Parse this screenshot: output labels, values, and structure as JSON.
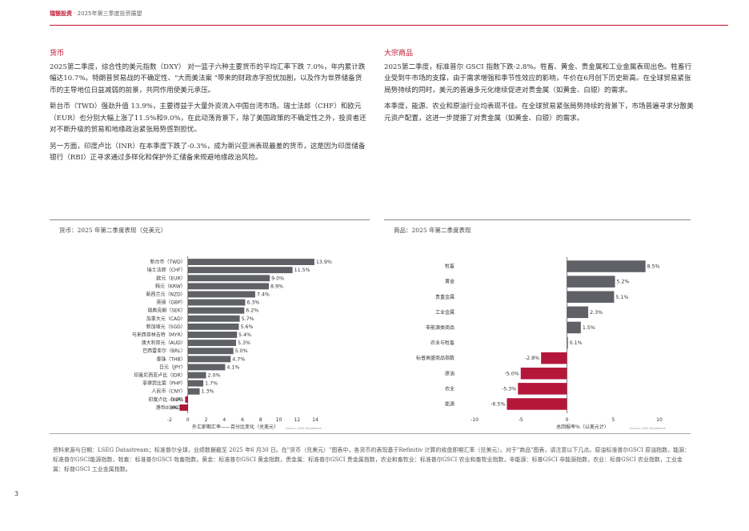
{
  "header": {
    "brand": "瑞银投资",
    "title": "· 2025年第三季度投资展望"
  },
  "currency_section": {
    "title": "货币",
    "paragraphs": [
      "2025第二季度，综合性的美元指数（DXY） 对一篮子六种主要货币的平均汇率下跌 7.0%，年内累计跌幅达10.7%。特朗普贸易战的不确定性、\"大而美法案 \"带来的财政赤字担忧加剧，以及作为世界储备货币的主导地位日益减弱的前景，共同作用使美元承压。",
      "新台币（TWD）强劲升值 13.9%，主要得益于大量外资流入中国台湾市场。瑞士法郎（CHF）和欧元（EUR）也分别大幅上涨了11.5%和9.0%，在此动荡背景下，除了美国政策的不确定性之外，投资者还对不断升级的贸易和地缘政治紧张局势感到担忧。",
      "另一方面，印度卢比（INR）在本季度下跌了-0.3%，成为新兴亚洲表现最差的货币，这是因为印度储备银行（RBI）正寻求通过多样化和保护外汇储备来规避地缘政治风险。"
    ]
  },
  "commodity_section": {
    "title": "大宗商品",
    "paragraphs": [
      "2025第二季度，标准普尔 GSCI 指数下跌-2.8%。牲畜、黄金、贵金属和工业金属表现出色。牲畜行业受到牛市场的支撑，由于需求增强和季节性效应的影响，牛价在6月创下历史新高。在全球贸易紧张局势持续的同时，美元的普遍多元化继续促进对贵金属（如黄金、白银）的需求。",
      "本季度，能源、农业和原油行业均表现不佳。在全球贸易紧张局势持续的背景下，市场普遍寻求分散美元资产配置，这进一步提振了对贵金属（如黄金、白银）的需求。"
    ]
  },
  "colors": {
    "accent": "#c0132f",
    "bar_pos": "#5f6166",
    "bar_neg": "#b5173a"
  },
  "chart_data": [
    {
      "type": "bar",
      "orientation": "horizontal",
      "title": "货币：2025 年第二季度表现（兑美元）",
      "xlabel": "外汇即期汇率——百分比变化（兑美元）",
      "source": "Source: LSEG Datastream",
      "categories": [
        "新台币（TWD）",
        "瑞士法郎（CHF）",
        "欧元（EUR）",
        "韩元（KRW）",
        "新西兰元（NZD）",
        "英镑（GBP）",
        "瑞典克朗（SEK）",
        "加拿大元（CAD）",
        "新加坡元（SGD）",
        "马来西亚林吉特（MYR）",
        "澳大利亚元（AUD）",
        "巴西雷亚尔（BRL）",
        "泰铢（THB）",
        "日元（JPY）",
        "印度尼西亚卢比（IDR）",
        "菲律宾比索（PHP）",
        "人民币（CNY）",
        "印度卢比（INR）",
        "港币（HKD）"
      ],
      "values": [
        13.9,
        11.5,
        9.0,
        8.9,
        7.4,
        6.3,
        6.2,
        5.7,
        5.6,
        5.4,
        5.3,
        5.0,
        4.7,
        4.1,
        2.0,
        1.7,
        1.3,
        -0.3,
        -0.9
      ],
      "value_labels": [
        "13.9%",
        "11.5%",
        "9.0%",
        "8.9%",
        "7.4%",
        "6.3%",
        "6.2%",
        "5.7%",
        "5.6%",
        "5.4%",
        "5.3%",
        "5.0%",
        "4.7%",
        "4.1%",
        "2.0%",
        "1.7%",
        "1.3%",
        "-0.3%",
        "-0.9%"
      ],
      "ticks": [
        "-2",
        "0",
        "2",
        "4",
        "6",
        "8",
        "10",
        "12",
        "14"
      ],
      "xlim": [
        -2,
        14
      ]
    },
    {
      "type": "bar",
      "orientation": "horizontal",
      "title": "商品：2025 年第二季度表现",
      "xlabel": "总回报率%（以美元计）",
      "source": "Source: LSEG Datastream",
      "categories": [
        "牲畜",
        "黄金",
        "贵重金属",
        "工业金属",
        "非能源类商品",
        "农业与牲畜",
        "标普高盛商品指数",
        "原油",
        "农业",
        "能源"
      ],
      "values": [
        8.5,
        5.2,
        5.1,
        2.3,
        1.5,
        0.1,
        -2.8,
        -5.0,
        -5.3,
        -6.5
      ],
      "value_labels": [
        "8.5%",
        "5.2%",
        "5.1%",
        "2.3%",
        "1.5%",
        "0.1%",
        "-2.8%",
        "-5.0%",
        "-5.3%",
        "-6.5%"
      ],
      "ticks": [
        "-10",
        "-5",
        "0",
        "5",
        "10"
      ],
      "xlim": [
        -10,
        10
      ]
    }
  ],
  "footnote": "资料来源与日期：LSEG Datastream；标准普尔全球，业绩数据截至 2025 年6 月30 日。在\"货币（兑美元）\"图表中，各货币的表现基于Refinitiv 计算的收盘即期汇率（兑美元）。对于\"商品\"图表，请注意以下几点。原油标准普尔GSCI 原油指数，能源：标准普尔GSCI能源指数，牲畜：标准普尔GSCI 牲畜指数，黄金：标准普尔GSCI 黄金指数，贵金属：标准普尔GSCI 贵金属指数，农业和畜牧业：标准普尔GSCI 农业和畜牧业指数，非能源：标普GSCI 非能源指数，农业：标普GSCI 农业指数，工业金属：标普GSCI 工业金属指数。",
  "page_number": "3"
}
